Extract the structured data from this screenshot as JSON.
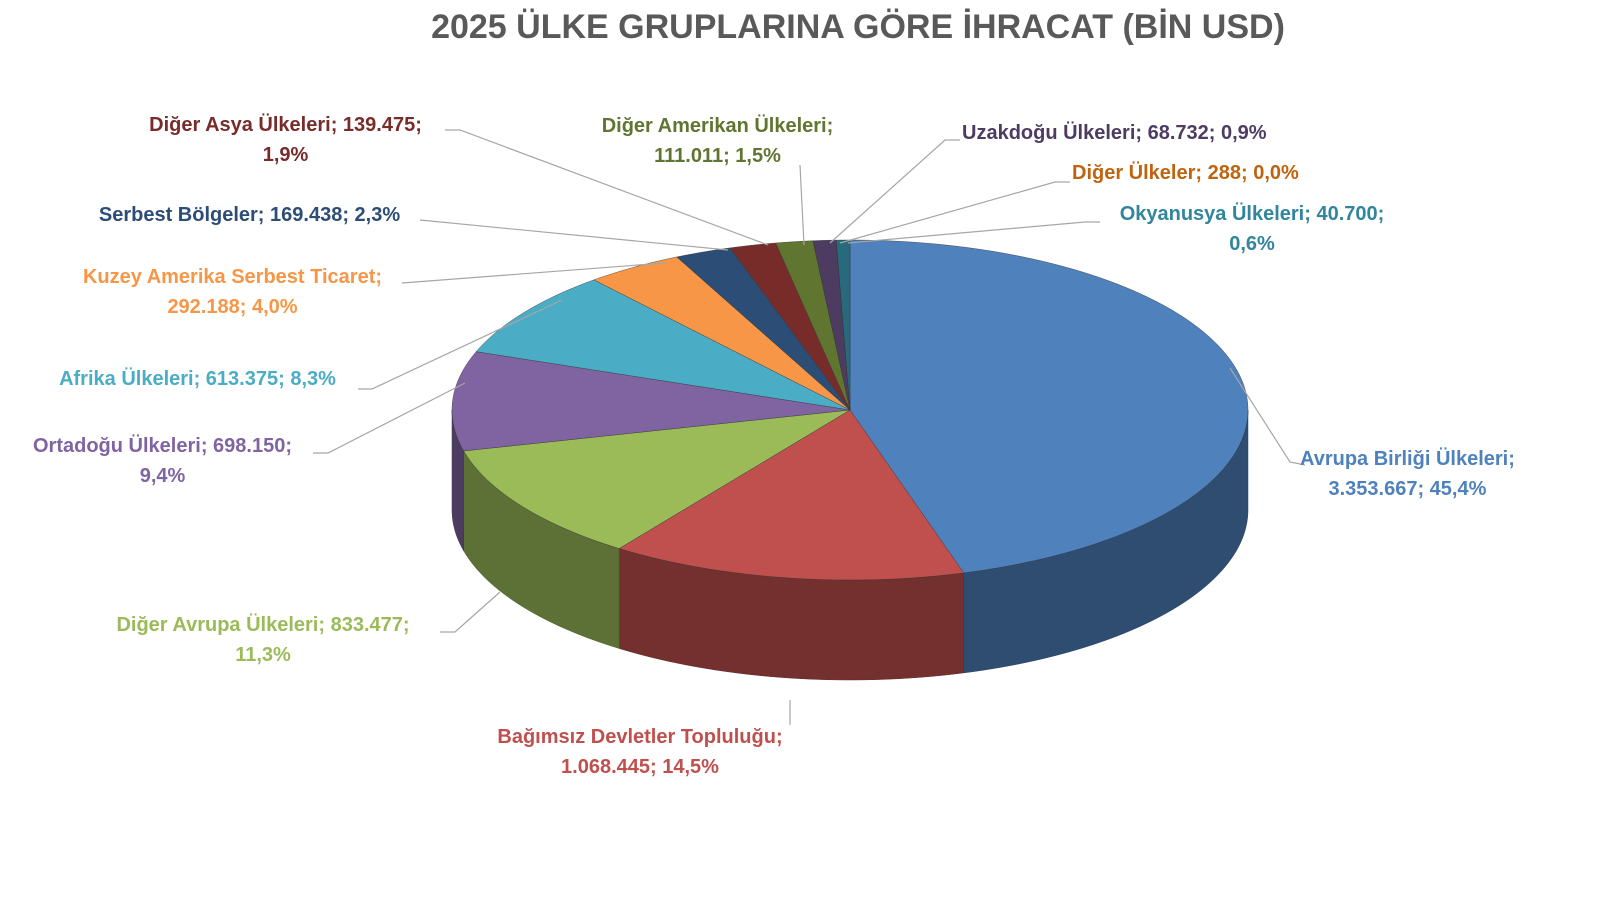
{
  "chart_data": {
    "type": "pie",
    "style": "3d",
    "title": "2025 ÜLKE GRUPLARINA GÖRE İHRACAT (BİN USD)",
    "slices": [
      {
        "name": "Avrupa Birliği Ülkeleri",
        "value": 3353667,
        "value_label": "3.353.667",
        "percent": "45,4%",
        "color": "#4f81bd",
        "text_color": "#4f81bd",
        "label": "Avrupa Birliği Ülkeleri;",
        "label2": "3.353.667; 45,4%"
      },
      {
        "name": "Bağımsız Devletler Topluluğu",
        "value": 1068445,
        "value_label": "1.068.445",
        "percent": "14,5%",
        "color": "#c0504d",
        "text_color": "#c0504d",
        "label": "Bağımsız Devletler Topluluğu;",
        "label2": "1.068.445; 14,5%"
      },
      {
        "name": "Diğer Avrupa Ülkeleri",
        "value": 833477,
        "value_label": "833.477",
        "percent": "11,3%",
        "color": "#9bbb59",
        "text_color": "#9bbb59",
        "label": "Diğer Avrupa Ülkeleri; 833.477;",
        "label2": "11,3%"
      },
      {
        "name": "Ortadoğu Ülkeleri",
        "value": 698150,
        "value_label": "698.150",
        "percent": "9,4%",
        "color": "#8064a2",
        "text_color": "#8064a2",
        "label": "Ortadoğu Ülkeleri; 698.150;",
        "label2": "9,4%"
      },
      {
        "name": "Afrika Ülkeleri",
        "value": 613375,
        "value_label": "613.375",
        "percent": "8,3%",
        "color": "#4bacc6",
        "text_color": "#4bacc6",
        "label": "Afrika Ülkeleri; 613.375; 8,3%",
        "label2": ""
      },
      {
        "name": "Kuzey Amerika Serbest Ticaret",
        "value": 292188,
        "value_label": "292.188",
        "percent": "4,0%",
        "color": "#f79646",
        "text_color": "#f79646",
        "label": "Kuzey Amerika Serbest Ticaret;",
        "label2": "292.188; 4,0%"
      },
      {
        "name": "Serbest Bölgeler",
        "value": 169438,
        "value_label": "169.438",
        "percent": "2,3%",
        "color": "#2c4d75",
        "text_color": "#2c4d75",
        "label": "Serbest Bölgeler; 169.438; 2,3%",
        "label2": ""
      },
      {
        "name": "Diğer Asya Ülkeleri",
        "value": 139475,
        "value_label": "139.475",
        "percent": "1,9%",
        "color": "#772c2a",
        "text_color": "#772c2a",
        "label": "Diğer Asya Ülkeleri; 139.475;",
        "label2": "1,9%"
      },
      {
        "name": "Diğer Amerikan Ülkeleri",
        "value": 111011,
        "value_label": "111.011",
        "percent": "1,5%",
        "color": "#5f7530",
        "text_color": "#5f7530",
        "label": "Diğer Amerikan Ülkeleri;",
        "label2": "111.011; 1,5%"
      },
      {
        "name": "Uzakdoğu Ülkeleri",
        "value": 68732,
        "value_label": "68.732",
        "percent": "0,9%",
        "color": "#4d3b62",
        "text_color": "#4d3b62",
        "label": "Uzakdoğu Ülkeleri; 68.732; 0,9%",
        "label2": ""
      },
      {
        "name": "Diğer Ülkeler",
        "value": 288,
        "value_label": "288",
        "percent": "0,0%",
        "color": "#b65708",
        "text_color": "#c0630e",
        "label": "Diğer Ülkeler; 288; 0,0%",
        "label2": ""
      },
      {
        "name": "Okyanusya Ülkeleri",
        "value": 40700,
        "value_label": "40.700",
        "percent": "0,6%",
        "color": "#276a7c",
        "text_color": "#31859c",
        "label": "Okyanusya Ülkeleri; 40.700;",
        "label2": "0,6%"
      }
    ]
  }
}
